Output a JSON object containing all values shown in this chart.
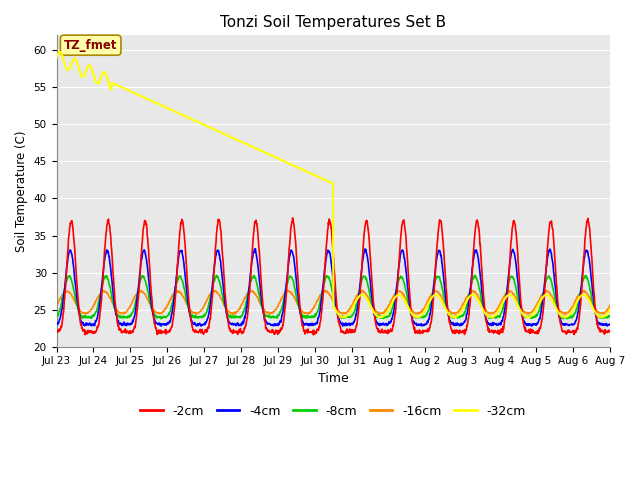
{
  "title": "Tonzi Soil Temperatures Set B",
  "xlabel": "Time",
  "ylabel": "Soil Temperature (C)",
  "ylim": [
    20,
    62
  ],
  "yticks": [
    20,
    25,
    30,
    35,
    40,
    45,
    50,
    55,
    60
  ],
  "plot_bg_color": "#e8e8e8",
  "fig_bg_color": "#ffffff",
  "annotation_label": "TZ_fmet",
  "series": {
    "neg2cm": {
      "label": "-2cm",
      "color": "#ff0000",
      "lw": 1.2
    },
    "neg4cm": {
      "label": "-4cm",
      "color": "#0000ff",
      "lw": 1.2
    },
    "neg8cm": {
      "label": "-8cm",
      "color": "#00cc00",
      "lw": 1.2
    },
    "neg16cm": {
      "label": "-16cm",
      "color": "#ff8800",
      "lw": 1.2
    },
    "neg32cm": {
      "label": "-32cm",
      "color": "#ffff00",
      "lw": 1.5
    }
  },
  "n_days": 15,
  "x_tick_labels": [
    "Jul 23",
    "Jul 24",
    "Jul 25",
    "Jul 26",
    "Jul 27",
    "Jul 28",
    "Jul 29",
    "Jul 30",
    "Jul 31",
    "Aug 1",
    "Aug 2",
    "Aug 3",
    "Aug 4",
    "Aug 5",
    "Aug 6",
    "Aug 7"
  ],
  "legend_fontsize": 9,
  "title_fontsize": 11
}
